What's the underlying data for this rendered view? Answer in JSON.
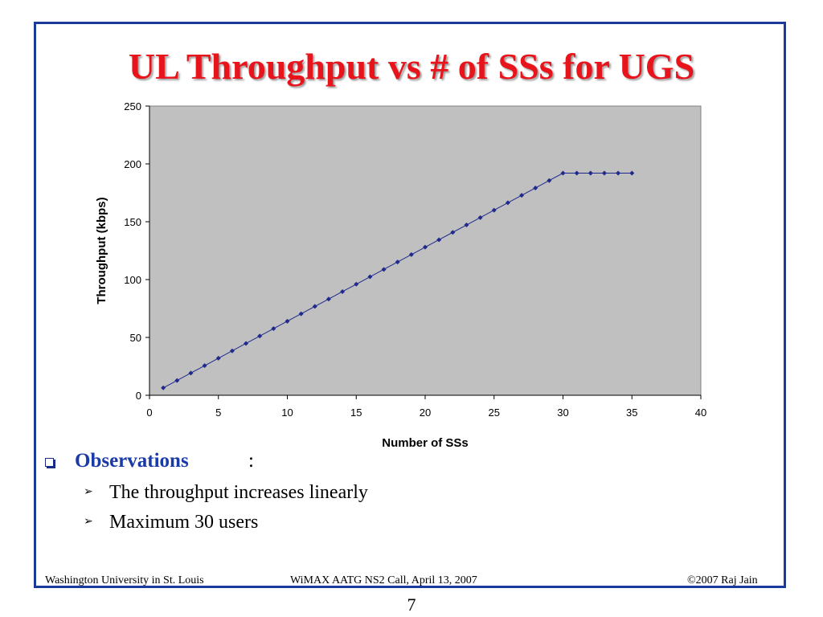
{
  "slide": {
    "title": "UL Throughput vs # of SSs for UGS",
    "page_number": "7"
  },
  "observations": {
    "label": "Observations",
    "colon": ":",
    "items": [
      "The throughput increases linearly",
      "Maximum 30 users"
    ]
  },
  "footer": {
    "left": "Washington University in St. Louis",
    "center": "WiMAX AATG NS2 Call, April 13, 2007",
    "right": "©2007 Raj Jain"
  },
  "colors": {
    "title": "#e8141c",
    "frame": "#1a3a9e",
    "plot_background": "#c0c0c0",
    "series": "#1f2a8c",
    "observations_label": "#1a3aa8"
  },
  "chart_data": {
    "type": "line",
    "xlabel": "Number of SSs",
    "ylabel": "Throughput (kbps)",
    "xlim": [
      0,
      40
    ],
    "ylim": [
      0,
      250
    ],
    "xticks": [
      0,
      5,
      10,
      15,
      20,
      25,
      30,
      35,
      40
    ],
    "yticks": [
      0,
      50,
      100,
      150,
      200,
      250
    ],
    "grid": false,
    "legend": "none",
    "series": [
      {
        "x": [
          1,
          2,
          3,
          4,
          5,
          6,
          7,
          8,
          9,
          10,
          11,
          12,
          13,
          14,
          15,
          16,
          17,
          18,
          19,
          20,
          21,
          22,
          23,
          24,
          25,
          26,
          27,
          28,
          29,
          30,
          31,
          32,
          33,
          34,
          35
        ],
        "y": [
          6.4,
          12.8,
          19.2,
          25.6,
          32,
          38.4,
          44.8,
          51.2,
          57.6,
          64,
          70.4,
          76.8,
          83.2,
          89.6,
          96,
          102.4,
          108.8,
          115.2,
          121.6,
          128,
          134.4,
          140.8,
          147.2,
          153.6,
          160,
          166.4,
          172.8,
          179.2,
          185.6,
          192,
          192,
          192,
          192,
          192,
          192
        ]
      }
    ]
  }
}
